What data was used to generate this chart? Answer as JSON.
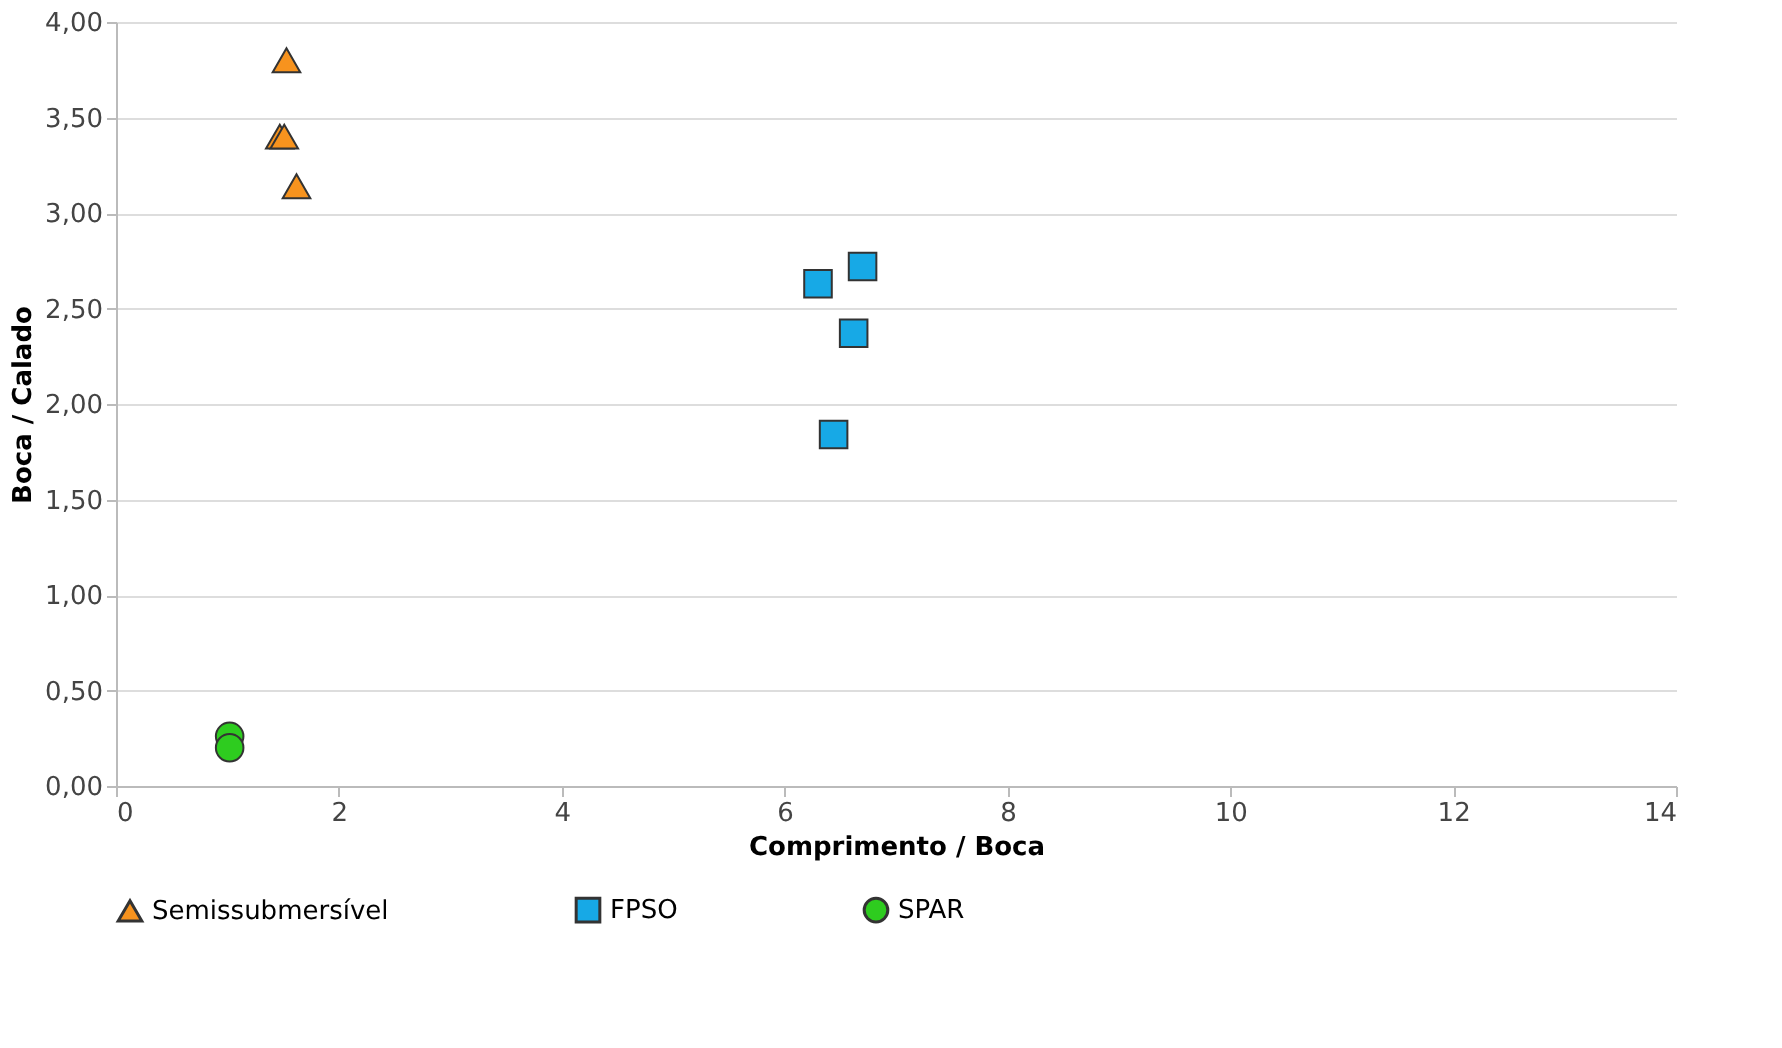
{
  "chart_data": {
    "type": "scatter",
    "xlabel": "Comprimento / Boca",
    "ylabel": "Boca / Calado",
    "xlim": [
      0,
      14
    ],
    "xticks": [
      0,
      2,
      4,
      6,
      8,
      10,
      12,
      14
    ],
    "ylim": [
      0,
      4
    ],
    "yticks": [
      {
        "value": 0,
        "label": "0,00"
      },
      {
        "value": 0.5,
        "label": "0,50"
      },
      {
        "value": 1,
        "label": "1,00"
      },
      {
        "value": 1.5,
        "label": "1,50"
      },
      {
        "value": 2,
        "label": "2,00"
      },
      {
        "value": 2.5,
        "label": "2,50"
      },
      {
        "value": 3,
        "label": "3,00"
      },
      {
        "value": 3.5,
        "label": "3,50"
      },
      {
        "value": 4,
        "label": "4,00"
      }
    ],
    "grid": "y",
    "legend": "bottom",
    "series": [
      {
        "name": "Semissubmersível",
        "color": "#f7931e",
        "marker": "triangle",
        "x": [
          1.53,
          1.47,
          1.51,
          1.62
        ],
        "values": [
          3.8,
          3.4,
          3.4,
          3.14
        ]
      },
      {
        "name": "FPSO",
        "color": "#17a9e6",
        "marker": "square",
        "x": [
          6.3,
          6.7,
          6.62,
          6.44
        ],
        "values": [
          2.63,
          2.72,
          2.37,
          1.84
        ]
      },
      {
        "name": "SPAR",
        "color": "#2ecc1f",
        "marker": "circle",
        "x": [
          1.02,
          1.02
        ],
        "values": [
          0.26,
          0.2
        ]
      }
    ]
  }
}
